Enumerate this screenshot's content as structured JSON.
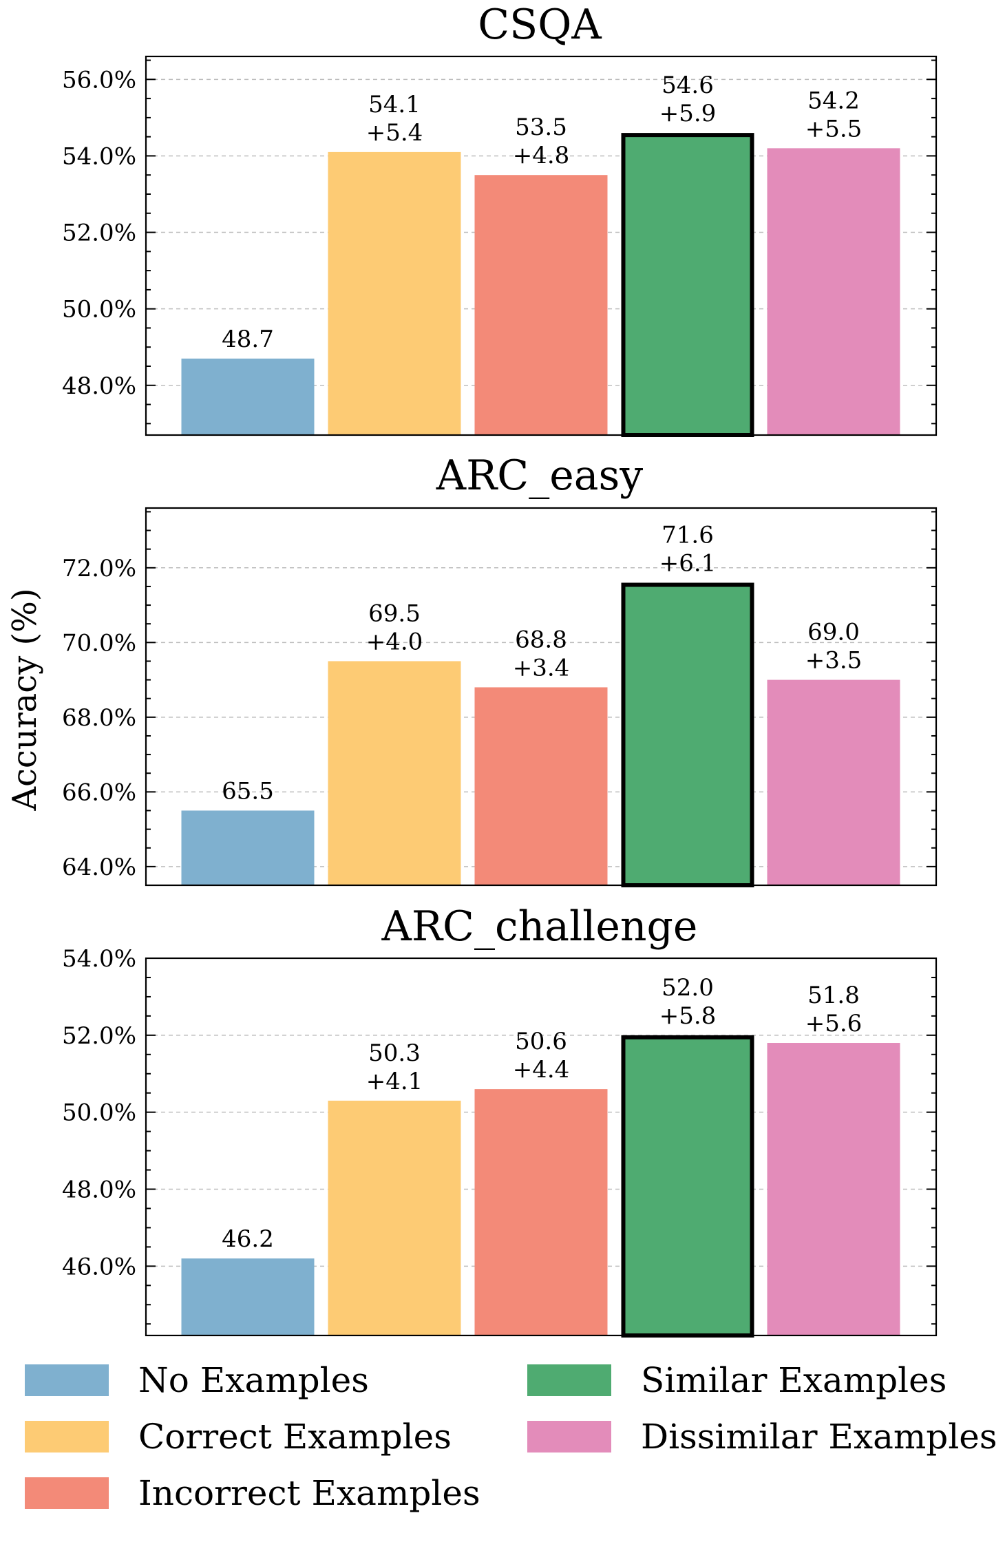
{
  "figure": {
    "ylabel": "Accuracy (%)",
    "legend": [
      {
        "name": "No Examples",
        "color": "#7fb0cf"
      },
      {
        "name": "Correct Examples",
        "color": "#fdcb74"
      },
      {
        "name": "Incorrect Examples",
        "color": "#f38a78"
      },
      {
        "name": "Similar Examples",
        "color": "#4fab71"
      },
      {
        "name": "Dissimilar Examples",
        "color": "#e38cba"
      }
    ]
  },
  "chart_data": [
    {
      "type": "bar",
      "title": "CSQA",
      "categories": [
        "No Examples",
        "Correct Examples",
        "Incorrect Examples",
        "Similar Examples",
        "Dissimilar Examples"
      ],
      "values": [
        48.7,
        54.1,
        53.5,
        54.6,
        54.2
      ],
      "value_labels": [
        "48.7",
        "54.1",
        "53.5",
        "54.6",
        "54.2"
      ],
      "delta_labels": [
        "",
        "+5.4",
        "+4.8",
        "+5.9",
        "+5.5"
      ],
      "highlight_index": 3,
      "ylim": [
        46.7,
        56.6
      ],
      "yticks": [
        48,
        50,
        52,
        54,
        56
      ],
      "ytick_labels": [
        "48.0%",
        "50.0%",
        "52.0%",
        "54.0%",
        "56.0%"
      ],
      "grid": true
    },
    {
      "type": "bar",
      "title": "ARC_easy",
      "categories": [
        "No Examples",
        "Correct Examples",
        "Incorrect Examples",
        "Similar Examples",
        "Dissimilar Examples"
      ],
      "values": [
        65.5,
        69.5,
        68.8,
        71.6,
        69.0
      ],
      "value_labels": [
        "65.5",
        "69.5",
        "68.8",
        "71.6",
        "69.0"
      ],
      "delta_labels": [
        "",
        "+4.0",
        "+3.4",
        "+6.1",
        "+3.5"
      ],
      "highlight_index": 3,
      "ylim": [
        63.5,
        73.6
      ],
      "yticks": [
        64,
        66,
        68,
        70,
        72
      ],
      "ytick_labels": [
        "64.0%",
        "66.0%",
        "68.0%",
        "70.0%",
        "72.0%"
      ],
      "grid": true
    },
    {
      "type": "bar",
      "title": "ARC_challenge",
      "categories": [
        "No Examples",
        "Correct Examples",
        "Incorrect Examples",
        "Similar Examples",
        "Dissimilar Examples"
      ],
      "values": [
        46.2,
        50.3,
        50.6,
        52.0,
        51.8
      ],
      "value_labels": [
        "46.2",
        "50.3",
        "50.6",
        "52.0",
        "51.8"
      ],
      "delta_labels": [
        "",
        "+4.1",
        "+4.4",
        "+5.8",
        "+5.6"
      ],
      "highlight_index": 3,
      "ylim": [
        44.2,
        54.0
      ],
      "yticks": [
        46,
        48,
        50,
        52,
        54
      ],
      "ytick_labels": [
        "46.0%",
        "48.0%",
        "50.0%",
        "52.0%",
        "54.0%"
      ],
      "grid": true
    }
  ]
}
